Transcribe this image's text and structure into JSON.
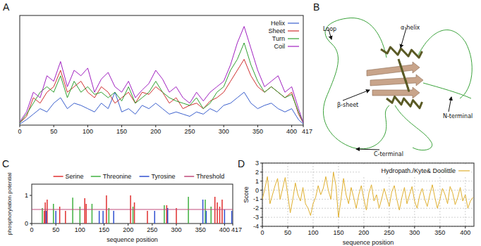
{
  "chart_data": [
    {
      "type": "line",
      "title": "A",
      "x": [
        0,
        10,
        20,
        30,
        40,
        50,
        60,
        70,
        80,
        90,
        100,
        110,
        120,
        130,
        140,
        150,
        160,
        170,
        180,
        190,
        200,
        210,
        220,
        230,
        240,
        250,
        260,
        270,
        280,
        290,
        300,
        310,
        320,
        330,
        340,
        350,
        360,
        370,
        380,
        390,
        400,
        410,
        417
      ],
      "series": [
        {
          "name": "Helix",
          "color": "#3a5fcd",
          "values": [
            0.01,
            0.05,
            0.1,
            0.15,
            0.12,
            0.2,
            0.25,
            0.15,
            0.2,
            0.18,
            0.15,
            0.12,
            0.2,
            0.15,
            0.3,
            0.12,
            0.15,
            0.1,
            0.18,
            0.15,
            0.2,
            0.15,
            0.1,
            0.12,
            0.1,
            0.08,
            0.12,
            0.1,
            0.15,
            0.12,
            0.18,
            0.2,
            0.25,
            0.3,
            0.2,
            0.15,
            0.18,
            0.2,
            0.15,
            0.12,
            0.15,
            0.05,
            0.01
          ]
        },
        {
          "name": "Sheet",
          "color": "#d03030",
          "values": [
            0.02,
            0.08,
            0.25,
            0.2,
            0.3,
            0.35,
            0.5,
            0.3,
            0.35,
            0.4,
            0.3,
            0.25,
            0.35,
            0.3,
            0.2,
            0.25,
            0.3,
            0.2,
            0.3,
            0.28,
            0.35,
            0.3,
            0.2,
            0.25,
            0.15,
            0.18,
            0.2,
            0.15,
            0.22,
            0.25,
            0.3,
            0.4,
            0.5,
            0.6,
            0.45,
            0.35,
            0.3,
            0.35,
            0.3,
            0.25,
            0.3,
            0.1,
            0.02
          ]
        },
        {
          "name": "Turn",
          "color": "#30a030",
          "values": [
            0.02,
            0.1,
            0.2,
            0.3,
            0.35,
            0.3,
            0.45,
            0.25,
            0.4,
            0.3,
            0.35,
            0.28,
            0.3,
            0.25,
            0.3,
            0.22,
            0.35,
            0.2,
            0.25,
            0.3,
            0.4,
            0.3,
            0.25,
            0.22,
            0.2,
            0.18,
            0.25,
            0.15,
            0.2,
            0.3,
            0.35,
            0.5,
            0.6,
            0.75,
            0.55,
            0.4,
            0.3,
            0.35,
            0.3,
            0.25,
            0.28,
            0.12,
            0.02
          ]
        },
        {
          "name": "Coil",
          "color": "#a020c0",
          "values": [
            0.03,
            0.12,
            0.3,
            0.25,
            0.45,
            0.4,
            0.58,
            0.35,
            0.5,
            0.45,
            0.52,
            0.3,
            0.42,
            0.48,
            0.35,
            0.3,
            0.4,
            0.25,
            0.32,
            0.38,
            0.5,
            0.42,
            0.3,
            0.35,
            0.25,
            0.2,
            0.3,
            0.22,
            0.3,
            0.35,
            0.4,
            0.55,
            0.75,
            0.9,
            0.7,
            0.5,
            0.35,
            0.4,
            0.45,
            0.3,
            0.35,
            0.15,
            0.02
          ]
        }
      ],
      "xlim": [
        0,
        417
      ],
      "xticks": [
        0,
        50,
        100,
        150,
        200,
        250,
        300,
        350,
        400,
        417
      ],
      "ylim": [
        0,
        1
      ],
      "tick_labels": "x",
      "legend": "upper right",
      "grid": false
    },
    {
      "type": "diagram",
      "title": "B",
      "annotations": [
        "Loop",
        "α-helix",
        "β-sheet",
        "N-terminal",
        "C-terminal"
      ]
    },
    {
      "type": "bar",
      "title": "C",
      "x_label": "sequence position",
      "y_label": "phosphorylation potential",
      "series": [
        {
          "name": "Serine",
          "color": "#e03030",
          "x": [
            26,
            28,
            32,
            58,
            70,
            110,
            113,
            155,
            205,
            213,
            240,
            280,
            300,
            380,
            385,
            390,
            395
          ],
          "values": [
            0.45,
            0.75,
            0.85,
            0.6,
            0.45,
            0.9,
            0.7,
            1.0,
            1.0,
            0.75,
            0.45,
            0.65,
            0.55,
            0.95,
            0.75,
            0.6,
            0.85
          ]
        },
        {
          "name": "Threonine",
          "color": "#40b040",
          "x": [
            22,
            45,
            85,
            100,
            125,
            160,
            210,
            275,
            325,
            360,
            372
          ],
          "values": [
            0.55,
            0.7,
            0.92,
            0.6,
            0.7,
            0.55,
            0.6,
            0.65,
            0.95,
            0.85,
            0.6
          ]
        },
        {
          "name": "Tyrosine",
          "color": "#3050d0",
          "x": [
            30,
            50,
            140,
            148,
            170,
            255,
            282,
            355,
            362,
            400,
            415
          ],
          "values": [
            0.45,
            0.45,
            0.45,
            0.45,
            0.45,
            0.45,
            0.55,
            0.85,
            0.45,
            0.5,
            0.45
          ]
        },
        {
          "name": "Threshold",
          "color": "#c04a7a",
          "type": "line",
          "x": [
            0,
            417
          ],
          "values": [
            0.5,
            0.5
          ]
        }
      ],
      "xlim": [
        0,
        417
      ],
      "xticks": [
        0,
        50,
        100,
        150,
        200,
        250,
        300,
        350,
        400,
        417
      ],
      "ylim": [
        0,
        1.4
      ],
      "yticks": [
        0,
        1
      ],
      "legend": "top",
      "grid": false
    },
    {
      "type": "line",
      "title": "D",
      "x_label": "sequence position",
      "y_label": "Score",
      "x": [
        0,
        5,
        10,
        15,
        20,
        25,
        30,
        35,
        40,
        45,
        50,
        55,
        60,
        65,
        70,
        75,
        80,
        85,
        90,
        95,
        100,
        105,
        110,
        115,
        120,
        125,
        130,
        135,
        140,
        145,
        150,
        155,
        160,
        165,
        170,
        175,
        180,
        185,
        190,
        195,
        200,
        205,
        210,
        215,
        220,
        225,
        230,
        235,
        240,
        245,
        250,
        255,
        260,
        265,
        270,
        275,
        280,
        285,
        290,
        295,
        300,
        305,
        310,
        315,
        320,
        325,
        330,
        335,
        340,
        345,
        350,
        355,
        360,
        365,
        370,
        375,
        380,
        385,
        390,
        395,
        400,
        405,
        410,
        415
      ],
      "series": [
        {
          "name": "Hydropath./Kyte& Doolittle",
          "color": "#e0b030",
          "values": [
            -1.0,
            0.2,
            1.5,
            -1.5,
            -0.5,
            0.5,
            1.3,
            -1.0,
            0.2,
            1.4,
            -0.5,
            -2.5,
            -1.0,
            0.8,
            -0.5,
            -1.2,
            0.3,
            -1.5,
            -2.0,
            -2.8,
            -1.5,
            -0.8,
            0.5,
            -0.5,
            0.2,
            1.5,
            0.0,
            -1.0,
            2.0,
            0.5,
            -3.0,
            -1.0,
            1.3,
            -0.5,
            -1.5,
            0.3,
            -0.8,
            -2.0,
            -0.5,
            0.5,
            -1.0,
            -2.2,
            -0.3,
            0.6,
            -1.2,
            -0.5,
            -2.0,
            -1.0,
            0.2,
            -0.8,
            -1.8,
            -0.2,
            0.5,
            -1.0,
            -2.2,
            -0.8,
            0.3,
            -1.5,
            -0.5,
            0.4,
            -1.2,
            -2.0,
            -0.6,
            0.2,
            -1.0,
            -1.8,
            -0.5,
            0.6,
            -0.8,
            -2.0,
            -1.0,
            0.2,
            -0.5,
            -1.5,
            0.4,
            -0.3,
            -1.6,
            -0.8,
            0.3,
            -1.2,
            -0.5,
            -2.0,
            -1.2,
            -0.8
          ]
        }
      ],
      "xlim": [
        0,
        417
      ],
      "xticks": [
        0,
        50,
        100,
        150,
        200,
        250,
        300,
        350,
        400
      ],
      "ylim": [
        -4,
        3
      ],
      "yticks": [
        -4,
        -3,
        -2,
        -1,
        0,
        1,
        2,
        3
      ],
      "legend": "upper right",
      "grid": true
    }
  ]
}
